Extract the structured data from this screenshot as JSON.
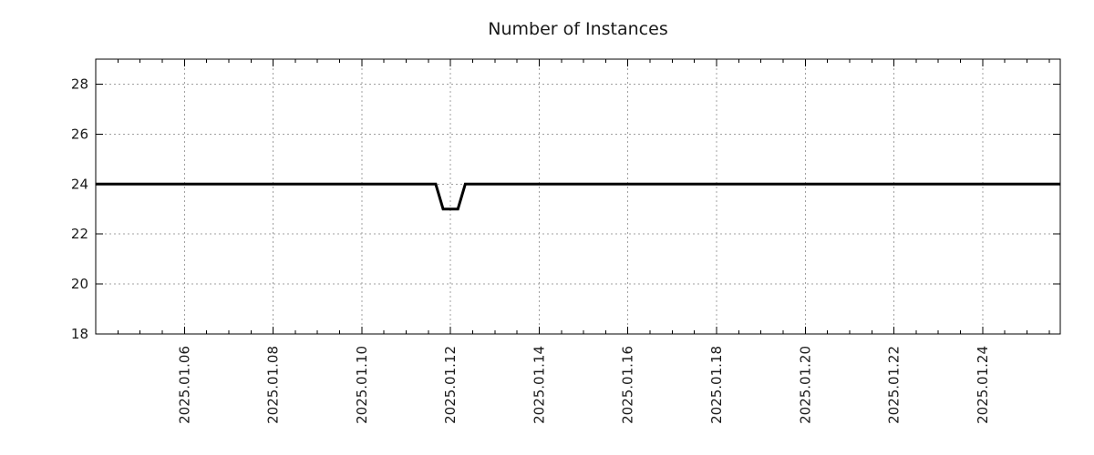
{
  "title": "Number of Instances",
  "chart_data": {
    "type": "line",
    "title": "Number of Instances",
    "x_type": "datetime",
    "xlim": [
      "2025-01-04 00:00",
      "2025-01-25 18:00"
    ],
    "ylim": [
      18,
      29
    ],
    "y_ticks": [
      18,
      20,
      22,
      24,
      26,
      28
    ],
    "x_major_ticks": [
      {
        "date": "2025-01-06 00:00",
        "label": "2025.01.06"
      },
      {
        "date": "2025-01-08 00:00",
        "label": "2025.01.08"
      },
      {
        "date": "2025-01-10 00:00",
        "label": "2025.01.10"
      },
      {
        "date": "2025-01-12 00:00",
        "label": "2025.01.12"
      },
      {
        "date": "2025-01-14 00:00",
        "label": "2025.01.14"
      },
      {
        "date": "2025-01-16 00:00",
        "label": "2025.01.16"
      },
      {
        "date": "2025-01-18 00:00",
        "label": "2025.01.18"
      },
      {
        "date": "2025-01-20 00:00",
        "label": "2025.01.20"
      },
      {
        "date": "2025-01-22 00:00",
        "label": "2025.01.22"
      },
      {
        "date": "2025-01-24 00:00",
        "label": "2025.01.24"
      }
    ],
    "x_minor_tick_days": 0.5,
    "grid": {
      "show": true,
      "style": "dotted",
      "color": "#a0a0a0"
    },
    "colors": {
      "axis": "#000000",
      "text": "#1a1a1a",
      "background": "#ffffff"
    },
    "legend": {
      "show": false
    },
    "series": [
      {
        "name": "instances",
        "color": "#000000",
        "line_width": 3,
        "points": [
          [
            "2025-01-04 00:00",
            24
          ],
          [
            "2025-01-11 16:00",
            24
          ],
          [
            "2025-01-11 20:00",
            23
          ],
          [
            "2025-01-12 04:00",
            23
          ],
          [
            "2025-01-12 08:00",
            24
          ],
          [
            "2025-01-25 18:00",
            24
          ]
        ]
      }
    ]
  }
}
